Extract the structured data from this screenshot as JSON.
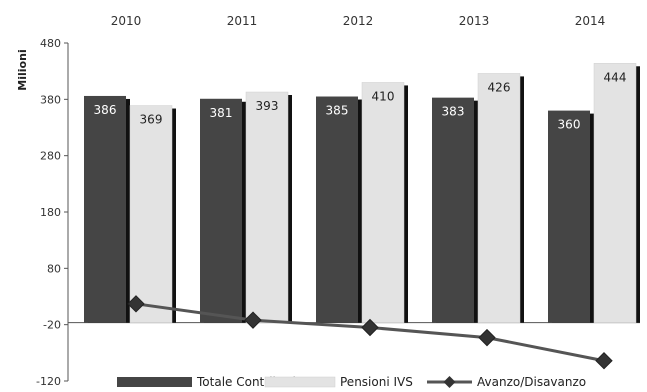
{
  "chart_data": {
    "type": "bar",
    "ylabel": "Milioni",
    "ylim": [
      -120,
      480
    ],
    "yticks": [
      480,
      380,
      280,
      180,
      80,
      -20,
      -120
    ],
    "categories": [
      "2010",
      "2011",
      "2012",
      "2013",
      "2014"
    ],
    "series": [
      {
        "name": "Totale Contributi",
        "type": "bar",
        "color": "#454545",
        "label_color": "#ffffff",
        "values": [
          386,
          381,
          385,
          383,
          360
        ]
      },
      {
        "name": "Pensioni IVS",
        "type": "bar",
        "color": "#e3e3e3",
        "label_color": "#222222",
        "values": [
          369,
          393,
          410,
          426,
          444
        ]
      },
      {
        "name": "Avanzo/Disavanzo",
        "type": "line",
        "color": "#555555",
        "marker": "diamond",
        "values": [
          17,
          -12,
          -25,
          -43,
          -84
        ]
      }
    ],
    "legend": "bottom",
    "grid": false
  }
}
